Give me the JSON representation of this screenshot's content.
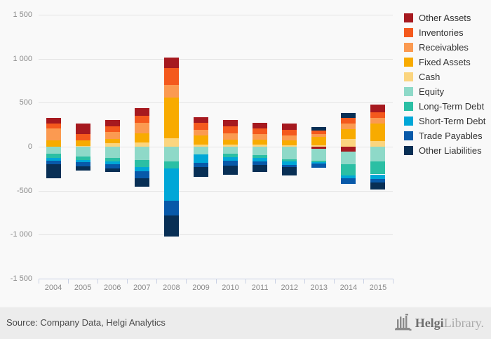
{
  "chart_data": {
    "type": "bar",
    "stacked": true,
    "title": "",
    "xlabel": "",
    "ylabel": "",
    "categories": [
      "2004",
      "2005",
      "2006",
      "2007",
      "2008",
      "2009",
      "2010",
      "2011",
      "2012",
      "2013",
      "2014",
      "2015"
    ],
    "series": [
      {
        "name": "Other Assets",
        "key": "other_assets",
        "color": "#a6191f",
        "values": [
          70,
          125,
          75,
          90,
          125,
          65,
          65,
          65,
          70,
          -20,
          -55,
          90
        ]
      },
      {
        "name": "Inventories",
        "key": "inventories",
        "color": "#f4591d",
        "values": [
          55,
          65,
          60,
          80,
          185,
          80,
          85,
          65,
          65,
          40,
          65,
          65
        ]
      },
      {
        "name": "Receivables",
        "key": "receivables",
        "color": "#fb9a51",
        "values": [
          130,
          0,
          80,
          120,
          145,
          65,
          70,
          60,
          60,
          30,
          65,
          65
        ]
      },
      {
        "name": "Fixed Assets",
        "key": "fixed_assets",
        "color": "#f8ab00",
        "values": [
          75,
          65,
          50,
          105,
          465,
          100,
          55,
          60,
          55,
          100,
          115,
          200
        ]
      },
      {
        "name": "Cash",
        "key": "cash",
        "color": "#fbd57f",
        "values": [
          0,
          10,
          40,
          45,
          95,
          25,
          25,
          20,
          15,
          15,
          85,
          60
        ]
      },
      {
        "name": "Equity",
        "key": "equity",
        "color": "#8ed9c8",
        "values": [
          -80,
          -110,
          -130,
          -150,
          -170,
          -90,
          -80,
          -95,
          -145,
          -140,
          -145,
          -170
        ]
      },
      {
        "name": "Long-Term Debt",
        "key": "long_term_debt",
        "color": "#2bbfa4",
        "values": [
          -48,
          -40,
          -40,
          -80,
          -80,
          0,
          -40,
          -30,
          -25,
          -15,
          -130,
          -145
        ]
      },
      {
        "name": "Short-Term Debt",
        "key": "short_term_debt",
        "color": "#00a7d7",
        "values": [
          -30,
          -25,
          -30,
          -50,
          -365,
          -90,
          -40,
          -40,
          -35,
          -15,
          -25,
          -50
        ]
      },
      {
        "name": "Trade Payables",
        "key": "trade_payables",
        "color": "#0859a9",
        "values": [
          -40,
          -50,
          -50,
          -80,
          -165,
          -55,
          -55,
          -40,
          -30,
          -50,
          -70,
          -45
        ]
      },
      {
        "name": "Other Liabilities",
        "key": "other_liabilities",
        "color": "#082f55",
        "values": [
          -160,
          -45,
          -40,
          -95,
          -240,
          -105,
          -105,
          -80,
          -90,
          40,
          55,
          -80
        ]
      }
    ],
    "yticks": [
      1500,
      1000,
      500,
      0,
      -500,
      -1000,
      -1500
    ],
    "ytick_labels": [
      "1 500",
      "1 000",
      "500",
      "0",
      "-500",
      "-1 000",
      "-1 500"
    ],
    "ylim": [
      -1500,
      1500
    ],
    "grid": true,
    "legend_position": "right"
  },
  "footer": {
    "source": "Source: Company Data, Helgi Analytics",
    "logo_bold": "Helgi",
    "logo_light": "Library."
  }
}
